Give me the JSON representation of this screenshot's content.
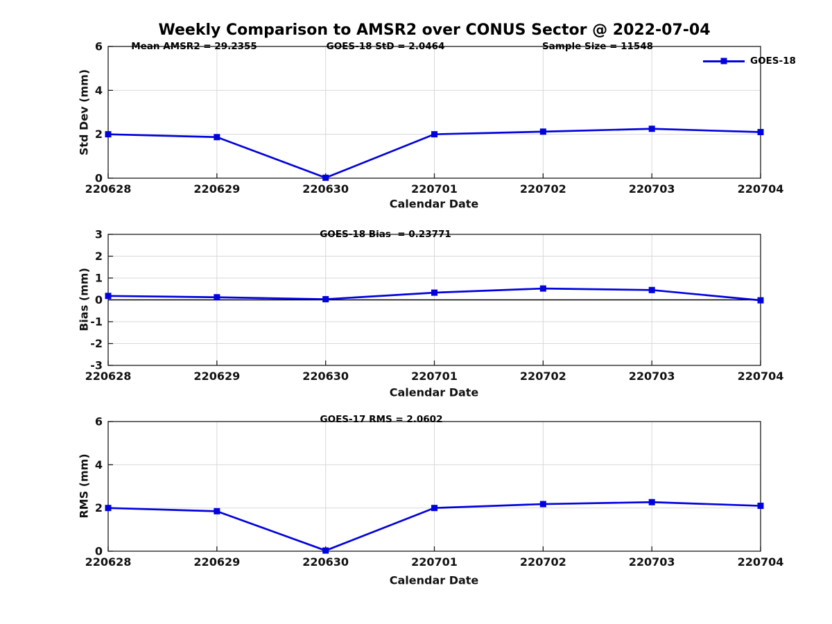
{
  "figure": {
    "title": "Weekly Comparison to AMSR2 over CONUS Sector @ 2022-07-04",
    "background_color": "#ffffff",
    "accent_color": "#0202dd"
  },
  "chart_data": [
    {
      "type": "line",
      "name": "std-dev-panel",
      "xlabel": "Calendar Date",
      "ylabel": "Std Dev (mm)",
      "categories": [
        "220628",
        "220629",
        "220630",
        "220701",
        "220702",
        "220703",
        "220704"
      ],
      "series": [
        {
          "name": "GOES-18",
          "color": "#0202dd",
          "marker": "square",
          "values": [
            2.0,
            1.87,
            0.02,
            2.0,
            2.12,
            2.25,
            2.1
          ]
        }
      ],
      "ylim": [
        0,
        6
      ],
      "yticks": [
        0,
        2,
        4,
        6
      ],
      "grid": true,
      "zero_line": false,
      "legend_position": "top-right",
      "annotations": [
        {
          "text": "Mean AMSR2 = 29.2355"
        },
        {
          "text": "GOES-18 StD = 2.0464"
        },
        {
          "text": "Sample Size = 11548"
        }
      ]
    },
    {
      "type": "line",
      "name": "bias-panel",
      "xlabel": "Calendar Date",
      "ylabel": "Bias (mm)",
      "categories": [
        "220628",
        "220629",
        "220630",
        "220701",
        "220702",
        "220703",
        "220704"
      ],
      "series": [
        {
          "name": "GOES-18",
          "color": "#0202dd",
          "marker": "square",
          "values": [
            0.18,
            0.12,
            0.03,
            0.33,
            0.52,
            0.45,
            -0.02
          ]
        }
      ],
      "ylim": [
        -3,
        3
      ],
      "yticks": [
        -3,
        -2,
        -1,
        0,
        1,
        2,
        3
      ],
      "grid": true,
      "zero_line": true,
      "legend_position": "none",
      "annotations": [
        {
          "text": "GOES-18 Bias  = 0.23771"
        }
      ]
    },
    {
      "type": "line",
      "name": "rms-panel",
      "xlabel": "Calendar Date",
      "ylabel": "RMS (mm)",
      "categories": [
        "220628",
        "220629",
        "220630",
        "220701",
        "220702",
        "220703",
        "220704"
      ],
      "series": [
        {
          "name": "GOES-18",
          "color": "#0202dd",
          "marker": "square",
          "values": [
            2.0,
            1.85,
            0.03,
            2.0,
            2.18,
            2.27,
            2.1
          ]
        }
      ],
      "ylim": [
        0,
        6
      ],
      "yticks": [
        0,
        2,
        4,
        6
      ],
      "grid": true,
      "zero_line": false,
      "legend_position": "none",
      "annotations": [
        {
          "text": "GOES-17 RMS = 2.0602"
        }
      ]
    }
  ]
}
